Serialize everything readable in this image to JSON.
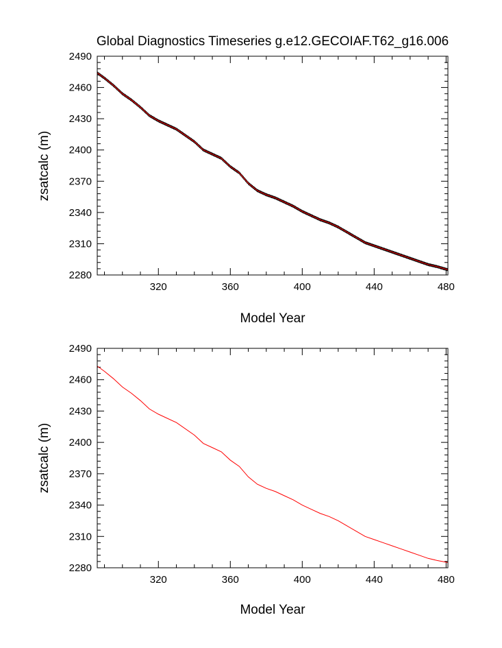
{
  "colors": {
    "monthly": "#000000",
    "annual": "#ff0000",
    "axes": "#000000"
  },
  "chart_data": [
    {
      "type": "line",
      "title": "Global Diagnostics Timeseries g.e12.GECOIAF.T62_g16.006",
      "xlabel": "Model Year",
      "ylabel": "zsatcalc (m)",
      "xlim": [
        286,
        481
      ],
      "ylim": [
        2280,
        2490
      ],
      "xticks": [
        320,
        360,
        400,
        440,
        480
      ],
      "yticks": [
        2280,
        2310,
        2340,
        2370,
        2400,
        2430,
        2460,
        2490
      ],
      "x_minor_step": 10,
      "y_minor_step": 6,
      "series": [
        {
          "style": "monthly (black, with red annual overlay)",
          "x": [
            286,
            290,
            295,
            300,
            305,
            310,
            315,
            320,
            330,
            340,
            345,
            350,
            355,
            360,
            365,
            370,
            375,
            380,
            385,
            390,
            395,
            400,
            405,
            410,
            415,
            420,
            425,
            430,
            435,
            440,
            445,
            450,
            455,
            460,
            465,
            470,
            475,
            481
          ],
          "y": [
            2474,
            2469,
            2462,
            2454,
            2448,
            2441,
            2433,
            2428,
            2420,
            2408,
            2400,
            2396,
            2392,
            2384,
            2378,
            2368,
            2361,
            2357,
            2354,
            2350,
            2346,
            2341,
            2337,
            2333,
            2330,
            2326,
            2321,
            2316,
            2311,
            2308,
            2305,
            2302,
            2299,
            2296,
            2293,
            2290,
            2288,
            2285
          ]
        }
      ]
    },
    {
      "type": "line",
      "title": "",
      "xlabel": "Model Year",
      "ylabel": "zsatcalc (m)",
      "xlim": [
        286,
        481
      ],
      "ylim": [
        2280,
        2490
      ],
      "xticks": [
        320,
        360,
        400,
        440,
        480
      ],
      "yticks": [
        2280,
        2310,
        2340,
        2370,
        2400,
        2430,
        2460,
        2490
      ],
      "x_minor_step": 10,
      "y_minor_step": 6,
      "series": [
        {
          "style": "annual (red)",
          "x": [
            286,
            290,
            295,
            300,
            305,
            310,
            315,
            320,
            330,
            340,
            345,
            350,
            355,
            360,
            365,
            370,
            375,
            380,
            385,
            390,
            395,
            400,
            405,
            410,
            415,
            420,
            425,
            430,
            435,
            440,
            445,
            450,
            455,
            460,
            465,
            470,
            475,
            481
          ],
          "y": [
            2473,
            2468,
            2461,
            2453,
            2447,
            2440,
            2432,
            2427,
            2419,
            2407,
            2399,
            2395,
            2391,
            2383,
            2377,
            2367,
            2360,
            2356,
            2353,
            2349,
            2345,
            2340,
            2336,
            2332,
            2329,
            2325,
            2320,
            2315,
            2310,
            2307,
            2304,
            2301,
            2298,
            2295,
            2292,
            2289,
            2287,
            2285
          ]
        }
      ]
    }
  ]
}
